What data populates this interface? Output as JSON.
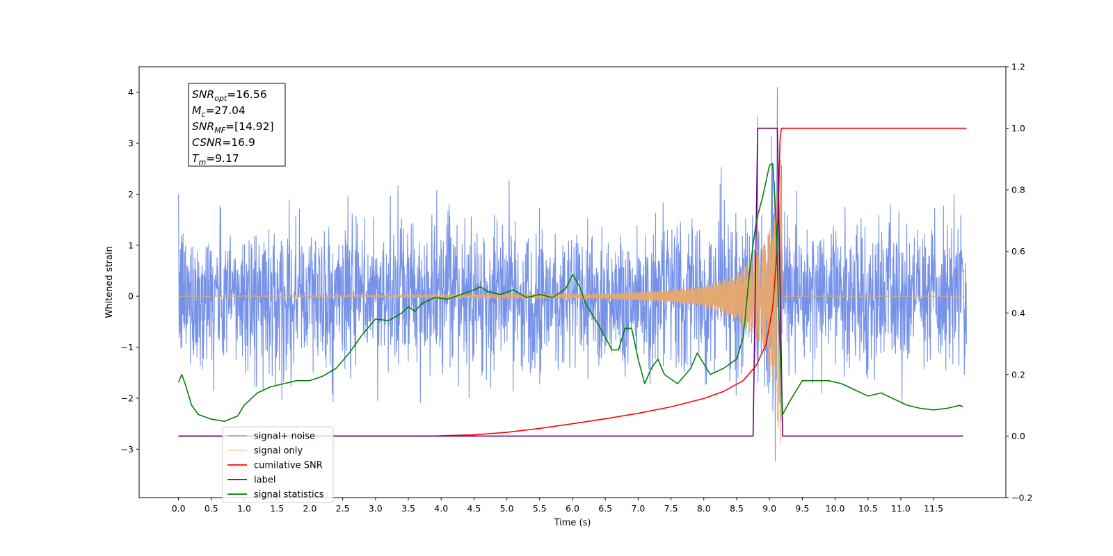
{
  "chart_data": {
    "type": "line",
    "title": "",
    "xlabel": "Time (s)",
    "ylabel": "Whitened strain",
    "xlim": [
      -0.6,
      12.6
    ],
    "ylim": [
      -3.95,
      4.5
    ],
    "y2lim": [
      -0.2,
      1.2
    ],
    "xticks": [
      0.0,
      0.5,
      1.0,
      1.5,
      2.0,
      2.5,
      3.0,
      3.5,
      4.0,
      4.5,
      5.0,
      5.5,
      6.0,
      6.5,
      7.0,
      7.5,
      8.0,
      8.5,
      9.0,
      9.5,
      10.0,
      10.5,
      11.0,
      11.5
    ],
    "xtick_labels": [
      "0.0",
      "0.5",
      "1.0",
      "1.5",
      "2.0",
      "2.5",
      "3.0",
      "3.5",
      "4.0",
      "4.5",
      "5.0",
      "5.5",
      "6.0",
      "6.5",
      "7.0",
      "7.5",
      "8.0",
      "8.5",
      "9.0",
      "9.5",
      "10.0",
      "10.5",
      "11.0",
      "11.5"
    ],
    "yticks": [
      -3,
      -2,
      -1,
      0,
      1,
      2,
      3,
      4
    ],
    "ytick_labels": [
      "−3",
      "−2",
      "−1",
      "0",
      "1",
      "2",
      "3",
      "4"
    ],
    "y2ticks": [
      -0.2,
      0.0,
      0.2,
      0.4,
      0.6,
      0.8,
      1.0,
      1.2
    ],
    "y2tick_labels": [
      "−0.2",
      "0.0",
      "0.2",
      "0.4",
      "0.6",
      "0.8",
      "1.0",
      "1.2"
    ],
    "grid": false,
    "legend_position": "lower-left",
    "series": [
      {
        "name": "signal+ noise",
        "axis": "left",
        "color": "#6a89e6",
        "noise_std": 0.72,
        "x_range": [
          0.0,
          12.0
        ],
        "peak": {
          "x": 9.12,
          "y": 4.1
        },
        "trough": {
          "x": 9.12,
          "y": -3.5
        }
      },
      {
        "name": "signal only",
        "axis": "left",
        "color": "#e8a96b",
        "x_range": [
          0.0,
          12.0
        ],
        "merger_time": 9.17,
        "max_amplitude": 2.95,
        "envelope": [
          [
            0.0,
            0.0
          ],
          [
            6.5,
            0.05
          ],
          [
            7.5,
            0.12
          ],
          [
            8.0,
            0.2
          ],
          [
            8.5,
            0.45
          ],
          [
            8.9,
            1.0
          ],
          [
            9.05,
            1.6
          ],
          [
            9.12,
            2.4
          ],
          [
            9.17,
            2.95
          ],
          [
            9.2,
            0.0
          ]
        ]
      },
      {
        "name": "cumilative SNR",
        "axis": "right",
        "color": "#ff0000",
        "x": [
          0.0,
          3.8,
          4.0,
          4.5,
          5.0,
          5.5,
          6.0,
          6.5,
          7.0,
          7.5,
          8.0,
          8.3,
          8.6,
          8.8,
          8.95,
          9.05,
          9.1,
          9.13,
          9.16,
          9.18,
          12.0
        ],
        "values": [
          0.0,
          0.0,
          0.001,
          0.004,
          0.012,
          0.025,
          0.04,
          0.056,
          0.074,
          0.095,
          0.122,
          0.145,
          0.18,
          0.23,
          0.3,
          0.42,
          0.56,
          0.72,
          0.96,
          1.0,
          1.0
        ]
      },
      {
        "name": "label",
        "axis": "right",
        "color": "#6a0080",
        "x": [
          0.0,
          8.75,
          8.82,
          9.12,
          9.2,
          11.95
        ],
        "values": [
          0.0,
          0.0,
          1.0,
          1.0,
          0.0,
          0.0
        ]
      },
      {
        "name": "signal statistics",
        "axis": "right",
        "color": "#008000",
        "x": [
          0.0,
          0.05,
          0.1,
          0.2,
          0.3,
          0.5,
          0.7,
          0.9,
          1.0,
          1.2,
          1.4,
          1.6,
          1.8,
          2.0,
          2.2,
          2.4,
          2.6,
          2.8,
          3.0,
          3.2,
          3.4,
          3.5,
          3.6,
          3.7,
          3.9,
          4.1,
          4.3,
          4.5,
          4.6,
          4.7,
          4.9,
          5.1,
          5.3,
          5.5,
          5.7,
          5.9,
          6.0,
          6.1,
          6.2,
          6.4,
          6.6,
          6.7,
          6.8,
          6.9,
          7.0,
          7.1,
          7.2,
          7.3,
          7.4,
          7.6,
          7.8,
          7.9,
          8.1,
          8.3,
          8.5,
          8.6,
          8.7,
          8.8,
          8.9,
          9.0,
          9.05,
          9.1,
          9.15,
          9.2,
          9.3,
          9.5,
          9.7,
          9.9,
          10.1,
          10.3,
          10.5,
          10.7,
          10.9,
          11.1,
          11.3,
          11.5,
          11.7,
          11.9,
          11.95
        ],
        "values": [
          0.175,
          0.2,
          0.17,
          0.1,
          0.07,
          0.055,
          0.048,
          0.065,
          0.1,
          0.14,
          0.16,
          0.17,
          0.18,
          0.18,
          0.195,
          0.22,
          0.27,
          0.33,
          0.38,
          0.375,
          0.4,
          0.42,
          0.405,
          0.43,
          0.45,
          0.445,
          0.46,
          0.475,
          0.485,
          0.47,
          0.46,
          0.475,
          0.45,
          0.46,
          0.45,
          0.48,
          0.525,
          0.49,
          0.43,
          0.36,
          0.28,
          0.28,
          0.35,
          0.35,
          0.25,
          0.17,
          0.22,
          0.25,
          0.2,
          0.17,
          0.22,
          0.27,
          0.2,
          0.22,
          0.25,
          0.32,
          0.54,
          0.7,
          0.78,
          0.88,
          0.885,
          0.7,
          0.35,
          0.07,
          0.11,
          0.18,
          0.18,
          0.18,
          0.17,
          0.15,
          0.13,
          0.14,
          0.12,
          0.1,
          0.09,
          0.085,
          0.09,
          0.1,
          0.095
        ]
      }
    ],
    "legend": [
      "signal+ noise",
      "signal only",
      "cumilative SNR",
      "label",
      "signal statistics"
    ],
    "annotations": [
      {
        "base": "SNR",
        "sub": "opt",
        "value": "=16.56"
      },
      {
        "base": "M",
        "sub": "c",
        "value": "=27.04"
      },
      {
        "base": "SNR",
        "sub": "MF",
        "value": "=[14.92]"
      },
      {
        "base": "CSNR",
        "sub": "",
        "value": "=16.9"
      },
      {
        "base": "T",
        "sub": "m",
        "value": "=9.17"
      }
    ]
  }
}
